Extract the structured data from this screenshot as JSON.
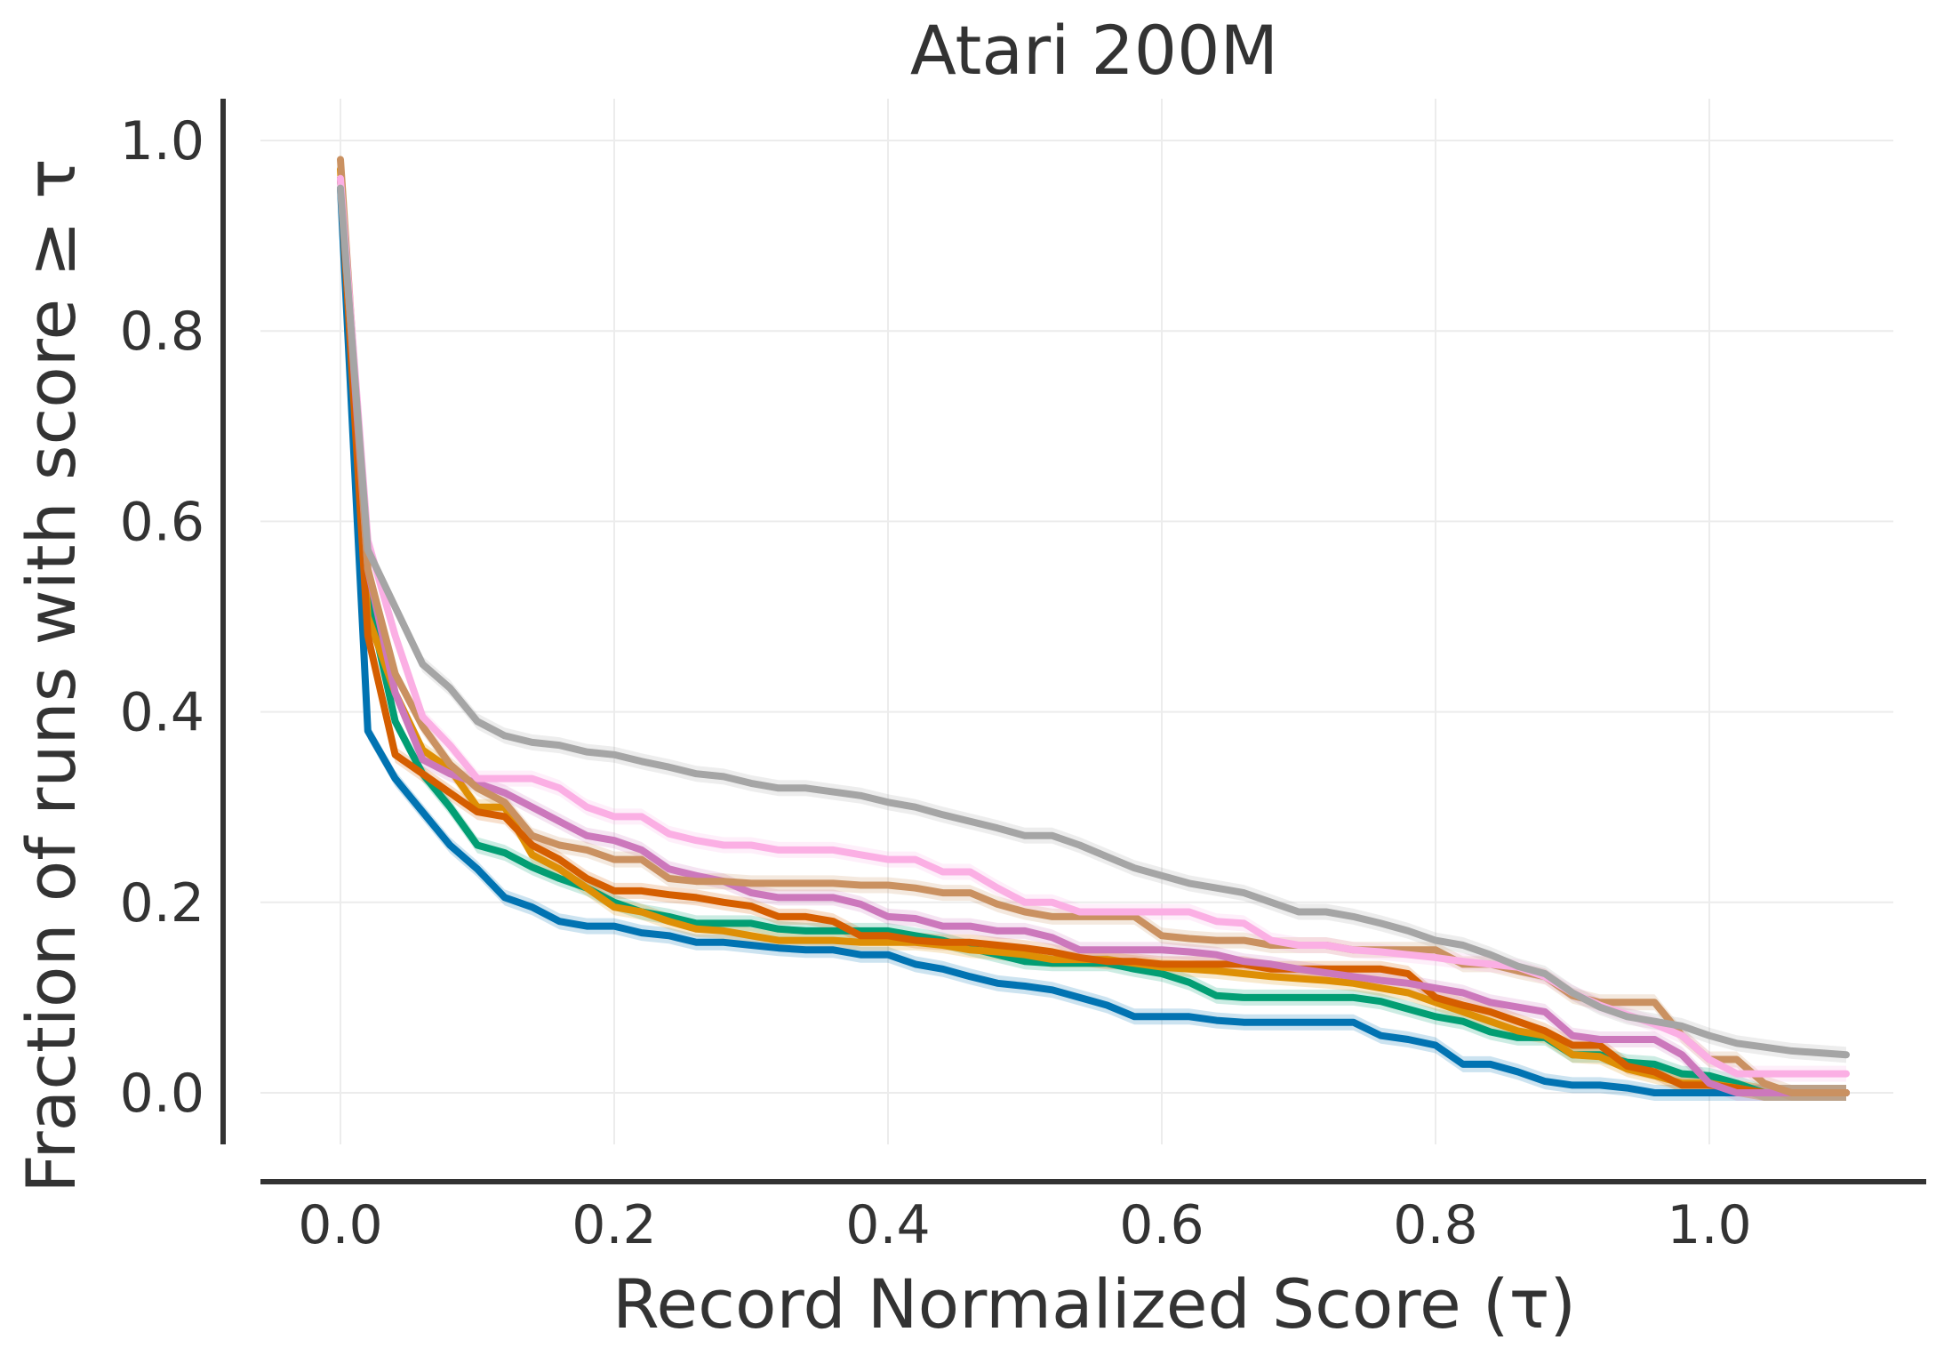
{
  "chart_data": {
    "type": "line",
    "title": "Atari 200M",
    "xlabel": "Record Normalized Score (τ)",
    "ylabel": "Fraction of runs with score  ≥ τ",
    "xlim": [
      -0.05,
      1.16
    ],
    "ylim": [
      -0.05,
      1.04
    ],
    "xticks": [
      0.0,
      0.2,
      0.4,
      0.6,
      0.8,
      1.0
    ],
    "xtick_labels": [
      "0.0",
      "0.2",
      "0.4",
      "0.6",
      "0.8",
      "1.0"
    ],
    "yticks": [
      0.0,
      0.2,
      0.4,
      0.6,
      0.8,
      1.0
    ],
    "ytick_labels": [
      "0.0",
      "0.2",
      "0.4",
      "0.6",
      "0.8",
      "1.0"
    ],
    "grid": true,
    "legend": "none",
    "x": [
      0.0,
      0.02,
      0.04,
      0.06,
      0.08,
      0.1,
      0.12,
      0.14,
      0.16,
      0.18,
      0.2,
      0.22,
      0.24,
      0.26,
      0.28,
      0.3,
      0.32,
      0.34,
      0.36,
      0.38,
      0.4,
      0.42,
      0.44,
      0.46,
      0.48,
      0.5,
      0.52,
      0.54,
      0.56,
      0.58,
      0.6,
      0.62,
      0.64,
      0.66,
      0.68,
      0.7,
      0.72,
      0.74,
      0.76,
      0.78,
      0.8,
      0.82,
      0.84,
      0.86,
      0.88,
      0.9,
      0.92,
      0.94,
      0.96,
      0.98,
      1.0,
      1.02,
      1.04,
      1.06,
      1.08,
      1.1
    ],
    "series": [
      {
        "color": "#0173b2",
        "values": [
          0.95,
          0.38,
          0.33,
          0.295,
          0.26,
          0.235,
          0.205,
          0.195,
          0.18,
          0.175,
          0.175,
          0.168,
          0.165,
          0.158,
          0.158,
          0.155,
          0.152,
          0.15,
          0.15,
          0.145,
          0.145,
          0.135,
          0.13,
          0.122,
          0.115,
          0.112,
          0.108,
          0.1,
          0.092,
          0.08,
          0.08,
          0.08,
          0.076,
          0.074,
          0.074,
          0.074,
          0.074,
          0.074,
          0.06,
          0.056,
          0.05,
          0.03,
          0.03,
          0.022,
          0.012,
          0.008,
          0.008,
          0.005,
          0.0,
          0.0,
          0.0,
          0.0,
          0.0,
          0.0,
          0.0,
          0.0
        ]
      },
      {
        "color": "#029e73",
        "values": [
          0.96,
          0.52,
          0.39,
          0.335,
          0.3,
          0.26,
          0.252,
          0.237,
          0.225,
          0.215,
          0.2,
          0.19,
          0.185,
          0.178,
          0.178,
          0.178,
          0.172,
          0.17,
          0.17,
          0.17,
          0.17,
          0.165,
          0.16,
          0.152,
          0.145,
          0.138,
          0.136,
          0.136,
          0.136,
          0.13,
          0.125,
          0.116,
          0.102,
          0.1,
          0.1,
          0.1,
          0.1,
          0.1,
          0.096,
          0.088,
          0.08,
          0.075,
          0.064,
          0.058,
          0.058,
          0.04,
          0.04,
          0.032,
          0.03,
          0.02,
          0.018,
          0.01,
          0.0,
          0.0,
          0.0,
          0.0
        ]
      },
      {
        "color": "#de8f05",
        "values": [
          0.97,
          0.5,
          0.42,
          0.36,
          0.34,
          0.3,
          0.3,
          0.25,
          0.235,
          0.215,
          0.195,
          0.19,
          0.18,
          0.172,
          0.17,
          0.165,
          0.16,
          0.16,
          0.16,
          0.158,
          0.158,
          0.158,
          0.155,
          0.15,
          0.148,
          0.145,
          0.14,
          0.14,
          0.14,
          0.136,
          0.132,
          0.13,
          0.128,
          0.125,
          0.122,
          0.12,
          0.118,
          0.115,
          0.11,
          0.105,
          0.095,
          0.085,
          0.075,
          0.065,
          0.06,
          0.04,
          0.038,
          0.025,
          0.018,
          0.01,
          0.01,
          0.005,
          0.0,
          0.0,
          0.0,
          0.0
        ]
      },
      {
        "color": "#d55e00",
        "values": [
          0.96,
          0.48,
          0.355,
          0.335,
          0.315,
          0.295,
          0.29,
          0.26,
          0.245,
          0.225,
          0.212,
          0.212,
          0.208,
          0.205,
          0.2,
          0.196,
          0.185,
          0.185,
          0.18,
          0.165,
          0.165,
          0.16,
          0.158,
          0.158,
          0.155,
          0.152,
          0.148,
          0.142,
          0.138,
          0.138,
          0.135,
          0.135,
          0.135,
          0.135,
          0.13,
          0.13,
          0.13,
          0.13,
          0.13,
          0.125,
          0.1,
          0.092,
          0.085,
          0.075,
          0.065,
          0.05,
          0.05,
          0.028,
          0.022,
          0.008,
          0.008,
          0.005,
          0.0,
          0.0,
          0.0,
          0.0
        ]
      },
      {
        "color": "#cc78bc",
        "values": [
          0.96,
          0.55,
          0.42,
          0.35,
          0.335,
          0.325,
          0.315,
          0.3,
          0.285,
          0.27,
          0.265,
          0.255,
          0.235,
          0.228,
          0.222,
          0.21,
          0.205,
          0.205,
          0.205,
          0.198,
          0.185,
          0.183,
          0.175,
          0.175,
          0.17,
          0.17,
          0.163,
          0.15,
          0.15,
          0.15,
          0.15,
          0.148,
          0.145,
          0.138,
          0.135,
          0.13,
          0.126,
          0.122,
          0.118,
          0.115,
          0.11,
          0.105,
          0.095,
          0.09,
          0.085,
          0.06,
          0.056,
          0.056,
          0.056,
          0.04,
          0.01,
          0.0,
          0.0,
          0.0,
          0.0,
          0.0
        ]
      },
      {
        "color": "#ca9161",
        "values": [
          0.98,
          0.55,
          0.44,
          0.385,
          0.345,
          0.32,
          0.305,
          0.27,
          0.26,
          0.255,
          0.245,
          0.245,
          0.225,
          0.222,
          0.222,
          0.22,
          0.22,
          0.22,
          0.22,
          0.218,
          0.218,
          0.215,
          0.21,
          0.21,
          0.198,
          0.19,
          0.185,
          0.185,
          0.185,
          0.185,
          0.165,
          0.162,
          0.16,
          0.16,
          0.155,
          0.155,
          0.155,
          0.15,
          0.15,
          0.15,
          0.15,
          0.135,
          0.135,
          0.128,
          0.122,
          0.102,
          0.095,
          0.095,
          0.095,
          0.06,
          0.035,
          0.035,
          0.01,
          0.0,
          0.0,
          0.0
        ]
      },
      {
        "color": "#fbafe4",
        "values": [
          0.96,
          0.58,
          0.48,
          0.395,
          0.365,
          0.33,
          0.33,
          0.33,
          0.32,
          0.3,
          0.29,
          0.29,
          0.272,
          0.265,
          0.26,
          0.26,
          0.255,
          0.255,
          0.255,
          0.25,
          0.245,
          0.245,
          0.232,
          0.232,
          0.215,
          0.2,
          0.2,
          0.19,
          0.19,
          0.19,
          0.19,
          0.19,
          0.18,
          0.178,
          0.16,
          0.155,
          0.155,
          0.15,
          0.148,
          0.145,
          0.142,
          0.138,
          0.135,
          0.132,
          0.122,
          0.105,
          0.092,
          0.082,
          0.072,
          0.06,
          0.035,
          0.02,
          0.02,
          0.02,
          0.02,
          0.02
        ]
      },
      {
        "color": "#a5a5a5",
        "values": [
          0.95,
          0.57,
          0.51,
          0.45,
          0.425,
          0.39,
          0.375,
          0.368,
          0.365,
          0.358,
          0.355,
          0.348,
          0.342,
          0.335,
          0.332,
          0.325,
          0.32,
          0.32,
          0.316,
          0.312,
          0.305,
          0.3,
          0.292,
          0.285,
          0.278,
          0.27,
          0.27,
          0.26,
          0.248,
          0.236,
          0.228,
          0.22,
          0.215,
          0.21,
          0.2,
          0.19,
          0.19,
          0.185,
          0.178,
          0.17,
          0.16,
          0.155,
          0.145,
          0.133,
          0.125,
          0.105,
          0.09,
          0.08,
          0.075,
          0.07,
          0.06,
          0.052,
          0.048,
          0.044,
          0.042,
          0.04
        ]
      }
    ]
  }
}
